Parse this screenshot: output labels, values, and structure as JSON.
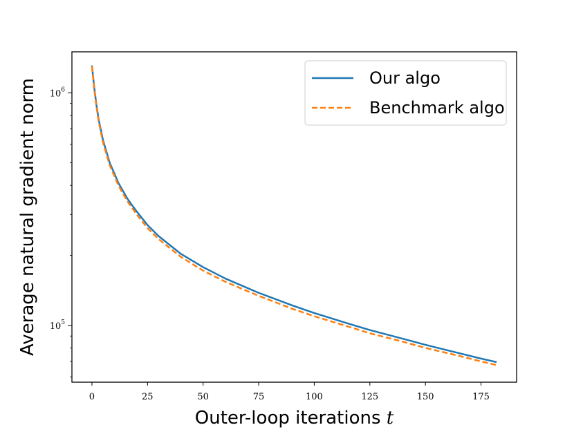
{
  "chart_data": {
    "type": "line",
    "title": "",
    "xlabel_text": "Outer-loop iterations ",
    "xlabel_var": "t",
    "ylabel": "Average natural gradient norm",
    "yscale": "log",
    "xlim": [
      -9,
      191
    ],
    "ylim": [
      57000,
      1500000
    ],
    "x_ticks": [
      0,
      25,
      50,
      75,
      100,
      125,
      150,
      175
    ],
    "x_tick_labels": [
      "0",
      "25",
      "50",
      "75",
      "100",
      "125",
      "150",
      "175"
    ],
    "y_ticks": [
      100000,
      1000000
    ],
    "y_tick_labels": [
      {
        "base": "10",
        "exp": "5"
      },
      {
        "base": "10",
        "exp": "6"
      }
    ],
    "grid": false,
    "legend_position": "top-right",
    "series": [
      {
        "name": "Our algo",
        "color": "#1f77b4",
        "style": "solid",
        "x": [
          0,
          1,
          2,
          3,
          5,
          8,
          12,
          16,
          20,
          25,
          30,
          40,
          50,
          60,
          75,
          90,
          100,
          115,
          125,
          140,
          150,
          165,
          175,
          182
        ],
        "y": [
          1310000,
          1060000,
          890000,
          770000,
          625000,
          500000,
          408000,
          350000,
          310000,
          270000,
          242000,
          203000,
          178000,
          159000,
          138000,
          122000,
          113000,
          102000,
          95500,
          87500,
          82500,
          76000,
          72000,
          69500
        ]
      },
      {
        "name": "Benchmark algo",
        "color": "#ff7f0e",
        "style": "dashed",
        "x": [
          0,
          1,
          2,
          3,
          5,
          8,
          12,
          16,
          20,
          25,
          30,
          40,
          50,
          60,
          75,
          90,
          100,
          115,
          125,
          140,
          150,
          165,
          175,
          182
        ],
        "y": [
          1300000,
          1045000,
          875000,
          755000,
          610000,
          488000,
          398000,
          341000,
          301000,
          262000,
          235000,
          197000,
          172000,
          154000,
          134000,
          118000,
          109500,
          99000,
          92500,
          85000,
          80000,
          74000,
          70000,
          67500
        ]
      }
    ]
  }
}
